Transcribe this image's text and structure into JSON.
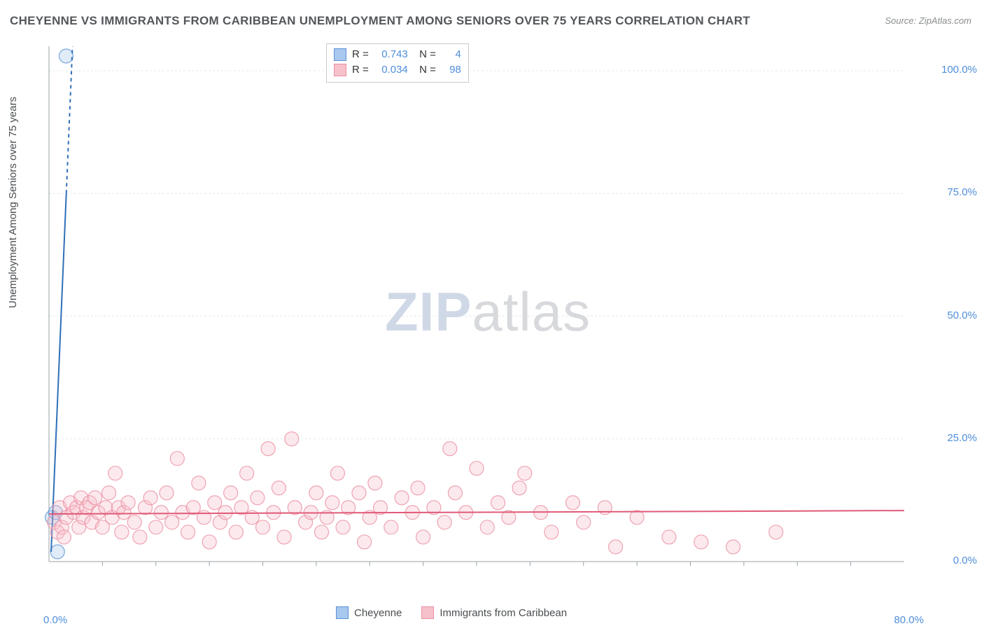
{
  "title": "CHEYENNE VS IMMIGRANTS FROM CARIBBEAN UNEMPLOYMENT AMONG SENIORS OVER 75 YEARS CORRELATION CHART",
  "source": "Source: ZipAtlas.com",
  "watermark_prefix": "ZIP",
  "watermark_suffix": "atlas",
  "y_axis_label": "Unemployment Among Seniors over 75 years",
  "chart": {
    "type": "scatter",
    "background_color": "#ffffff",
    "grid_color": "#e6e8eb",
    "grid_dash": "3,3",
    "axis_color": "#9aa0a6",
    "tick_color": "#9aa0a6",
    "xlim": [
      0,
      80
    ],
    "ylim": [
      0,
      105
    ],
    "x_ticks_major": [
      0,
      80
    ],
    "x_ticks_minor": [
      5,
      10,
      15,
      20,
      25,
      30,
      35,
      40,
      45,
      50,
      55,
      60,
      65,
      70,
      75
    ],
    "y_ticks": [
      0,
      25,
      50,
      75,
      100
    ],
    "x_tick_labels": {
      "0": "0.0%",
      "80": "80.0%"
    },
    "y_tick_labels": {
      "0": "0.0%",
      "25": "25.0%",
      "50": "50.0%",
      "75": "75.0%",
      "100": "100.0%"
    },
    "marker_radius": 10,
    "marker_opacity": 0.35,
    "fit_line_width": 2,
    "series": [
      {
        "name": "Cheyenne",
        "color_fill": "#a9c8ef",
        "color_stroke": "#5b93d6",
        "fit_line_color": "#2f6fb8",
        "fit_line_dashed_extension": true,
        "stats": {
          "R": "0.743",
          "N": "4"
        },
        "fit_line": {
          "x1": 0.2,
          "y1": 2,
          "x2": 2.2,
          "y2": 105
        },
        "fit_line_solid_top_y": 75,
        "points": [
          {
            "x": 0.3,
            "y": 9
          },
          {
            "x": 0.6,
            "y": 10
          },
          {
            "x": 0.8,
            "y": 2
          },
          {
            "x": 1.6,
            "y": 103
          }
        ]
      },
      {
        "name": "Immigrants from Caribbean",
        "color_fill": "#f6c1cb",
        "color_stroke": "#ea8fa0",
        "fit_line_color": "#e05a78",
        "fit_line_dashed_extension": false,
        "stats": {
          "R": "0.034",
          "N": "98"
        },
        "fit_line": {
          "x1": 0,
          "y1": 9.7,
          "x2": 80,
          "y2": 10.4
        },
        "points": [
          {
            "x": 0.5,
            "y": 8
          },
          {
            "x": 0.8,
            "y": 6
          },
          {
            "x": 1,
            "y": 11
          },
          {
            "x": 1.2,
            "y": 7
          },
          {
            "x": 1.4,
            "y": 5
          },
          {
            "x": 1.6,
            "y": 9
          },
          {
            "x": 2,
            "y": 12
          },
          {
            "x": 2.3,
            "y": 10
          },
          {
            "x": 2.6,
            "y": 11
          },
          {
            "x": 2.8,
            "y": 7
          },
          {
            "x": 3,
            "y": 13
          },
          {
            "x": 3.2,
            "y": 9
          },
          {
            "x": 3.5,
            "y": 11
          },
          {
            "x": 3.8,
            "y": 12
          },
          {
            "x": 4,
            "y": 8
          },
          {
            "x": 4.3,
            "y": 13
          },
          {
            "x": 4.6,
            "y": 10
          },
          {
            "x": 5,
            "y": 7
          },
          {
            "x": 5.3,
            "y": 11
          },
          {
            "x": 5.6,
            "y": 14
          },
          {
            "x": 5.9,
            "y": 9
          },
          {
            "x": 6.2,
            "y": 18
          },
          {
            "x": 6.5,
            "y": 11
          },
          {
            "x": 6.8,
            "y": 6
          },
          {
            "x": 7,
            "y": 10
          },
          {
            "x": 7.4,
            "y": 12
          },
          {
            "x": 8,
            "y": 8
          },
          {
            "x": 8.5,
            "y": 5
          },
          {
            "x": 9,
            "y": 11
          },
          {
            "x": 9.5,
            "y": 13
          },
          {
            "x": 10,
            "y": 7
          },
          {
            "x": 10.5,
            "y": 10
          },
          {
            "x": 11,
            "y": 14
          },
          {
            "x": 11.5,
            "y": 8
          },
          {
            "x": 12,
            "y": 21
          },
          {
            "x": 12.5,
            "y": 10
          },
          {
            "x": 13,
            "y": 6
          },
          {
            "x": 13.5,
            "y": 11
          },
          {
            "x": 14,
            "y": 16
          },
          {
            "x": 14.5,
            "y": 9
          },
          {
            "x": 15,
            "y": 4
          },
          {
            "x": 15.5,
            "y": 12
          },
          {
            "x": 16,
            "y": 8
          },
          {
            "x": 16.5,
            "y": 10
          },
          {
            "x": 17,
            "y": 14
          },
          {
            "x": 17.5,
            "y": 6
          },
          {
            "x": 18,
            "y": 11
          },
          {
            "x": 18.5,
            "y": 18
          },
          {
            "x": 19,
            "y": 9
          },
          {
            "x": 19.5,
            "y": 13
          },
          {
            "x": 20,
            "y": 7
          },
          {
            "x": 20.5,
            "y": 23
          },
          {
            "x": 21,
            "y": 10
          },
          {
            "x": 21.5,
            "y": 15
          },
          {
            "x": 22,
            "y": 5
          },
          {
            "x": 22.7,
            "y": 25
          },
          {
            "x": 23,
            "y": 11
          },
          {
            "x": 24,
            "y": 8
          },
          {
            "x": 24.5,
            "y": 10
          },
          {
            "x": 25,
            "y": 14
          },
          {
            "x": 25.5,
            "y": 6
          },
          {
            "x": 26,
            "y": 9
          },
          {
            "x": 26.5,
            "y": 12
          },
          {
            "x": 27,
            "y": 18
          },
          {
            "x": 27.5,
            "y": 7
          },
          {
            "x": 28,
            "y": 11
          },
          {
            "x": 29,
            "y": 14
          },
          {
            "x": 29.5,
            "y": 4
          },
          {
            "x": 30,
            "y": 9
          },
          {
            "x": 30.5,
            "y": 16
          },
          {
            "x": 31,
            "y": 11
          },
          {
            "x": 32,
            "y": 7
          },
          {
            "x": 33,
            "y": 13
          },
          {
            "x": 34,
            "y": 10
          },
          {
            "x": 34.5,
            "y": 15
          },
          {
            "x": 35,
            "y": 5
          },
          {
            "x": 36,
            "y": 11
          },
          {
            "x": 37,
            "y": 8
          },
          {
            "x": 37.5,
            "y": 23
          },
          {
            "x": 38,
            "y": 14
          },
          {
            "x": 39,
            "y": 10
          },
          {
            "x": 40,
            "y": 19
          },
          {
            "x": 41,
            "y": 7
          },
          {
            "x": 42,
            "y": 12
          },
          {
            "x": 43,
            "y": 9
          },
          {
            "x": 44,
            "y": 15
          },
          {
            "x": 44.5,
            "y": 18
          },
          {
            "x": 46,
            "y": 10
          },
          {
            "x": 47,
            "y": 6
          },
          {
            "x": 49,
            "y": 12
          },
          {
            "x": 50,
            "y": 8
          },
          {
            "x": 52,
            "y": 11
          },
          {
            "x": 53,
            "y": 3
          },
          {
            "x": 55,
            "y": 9
          },
          {
            "x": 58,
            "y": 5
          },
          {
            "x": 61,
            "y": 4
          },
          {
            "x": 64,
            "y": 3
          },
          {
            "x": 68,
            "y": 6
          }
        ]
      }
    ]
  },
  "bottom_legend": [
    {
      "label": "Cheyenne",
      "fill": "#a9c8ef",
      "stroke": "#5b93d6"
    },
    {
      "label": "Immigrants from Caribbean",
      "fill": "#f6c1cb",
      "stroke": "#ea8fa0"
    }
  ]
}
